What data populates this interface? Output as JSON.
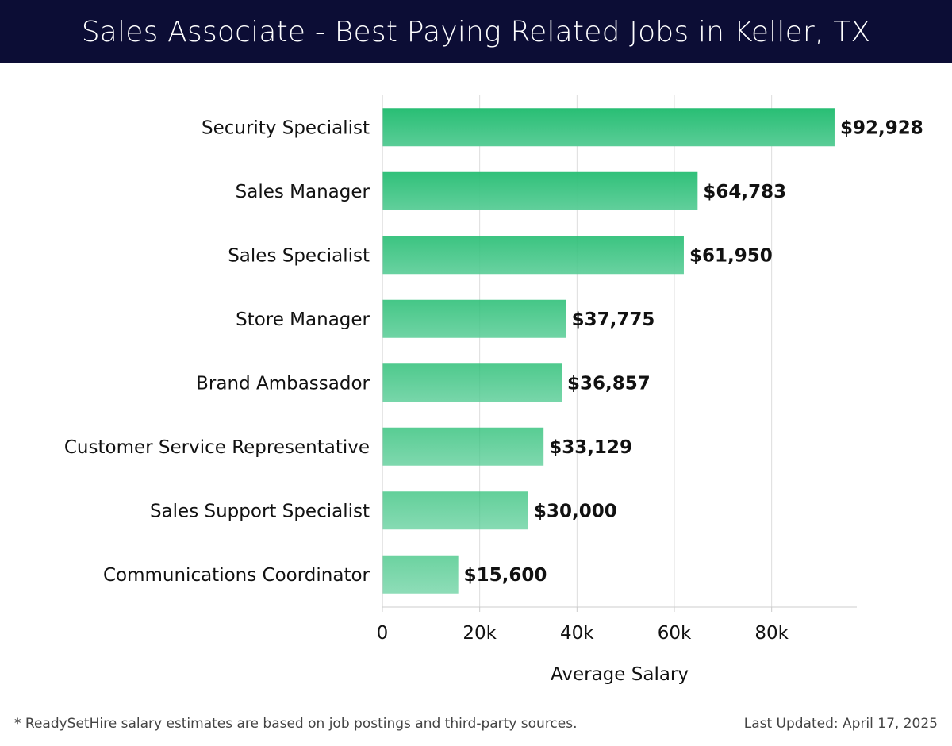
{
  "header": {
    "title": "Sales Associate - Best Paying Related Jobs in Keller, TX"
  },
  "footer": {
    "note": "* ReadySetHire salary estimates are based on job postings and third-party sources.",
    "last_updated": "Last Updated: April 17, 2025"
  },
  "colors": {
    "header_bg": "#0c0d35",
    "bar_top": "#28be74",
    "bar_bottom": "#5acd97",
    "gridline": "#dddddd"
  },
  "chart_data": {
    "type": "bar",
    "orientation": "horizontal",
    "categories": [
      "Security Specialist",
      "Sales Manager",
      "Sales Specialist",
      "Store Manager",
      "Brand Ambassador",
      "Customer Service Representative",
      "Sales Support Specialist",
      "Communications Coordinator"
    ],
    "values": [
      92928,
      64783,
      61950,
      37775,
      36857,
      33129,
      30000,
      15600
    ],
    "value_labels": [
      "$92,928",
      "$64,783",
      "$61,950",
      "$37,775",
      "$36,857",
      "$33,129",
      "$30,000",
      "$15,600"
    ],
    "xlabel": "Average Salary",
    "ylabel": "",
    "xlim": [
      0,
      97500
    ],
    "xticks": [
      0,
      20000,
      40000,
      60000,
      80000
    ],
    "xtick_labels": [
      "0",
      "20k",
      "40k",
      "60k",
      "80k"
    ],
    "grid": true,
    "legend": "none"
  }
}
